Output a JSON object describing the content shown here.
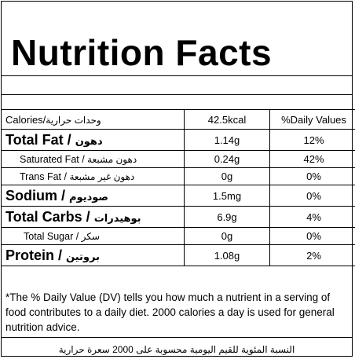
{
  "title": "Nutrition Facts",
  "header": {
    "label": "Calories/",
    "label_ar": "وحدات حرارية",
    "amount": "42.5kcal",
    "dv": "%Daily Values"
  },
  "rows": [
    {
      "name": "Total Fat /",
      "name_ar": "دهون",
      "amount": "1.14g",
      "dv": "12%"
    },
    {
      "name": "Saturated Fat /",
      "name_ar": "دهون مشبعة",
      "amount": "0.24g",
      "dv": "42%"
    },
    {
      "name": "Trans Fat /",
      "name_ar": "دهون غير مشبعة",
      "amount": "0g",
      "dv": "0%"
    },
    {
      "name": "Sodium /",
      "name_ar": "صوديوم",
      "amount": "1.5mg",
      "dv": "0%"
    },
    {
      "name": "Total Carbs /",
      "name_ar": "بوهيدرات",
      "amount": "6.9g",
      "dv": "4%"
    },
    {
      "name": "Total Sugar /",
      "name_ar": "سكر",
      "amount": "0g",
      "dv": "0%"
    },
    {
      "name": "Protein /",
      "name_ar": "بروتين",
      "amount": "1.08g",
      "dv": "2%"
    }
  ],
  "footer": {
    "note": "*The % Daily Value (DV) tells you how much a nutrient in a serving of food contributes to a daily diet. 2000 calories a day is used for general nutrition advice.",
    "note_ar": "النسبة المئوية للقيم اليومية محسوبة على 2000 سعرة حرارية"
  }
}
